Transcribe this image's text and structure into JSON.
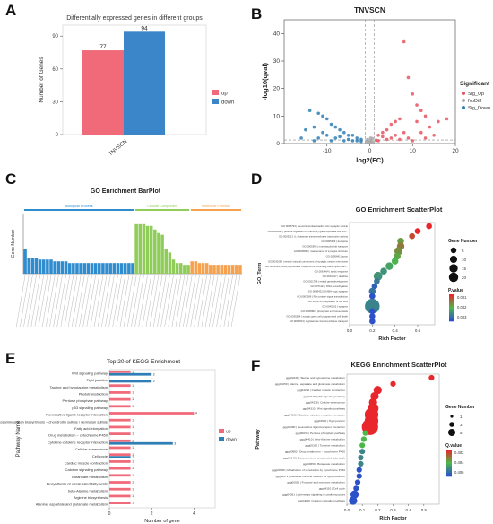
{
  "panel_letters": [
    "A",
    "B",
    "C",
    "D",
    "E",
    "F"
  ],
  "chart_data": [
    {
      "type": "bar",
      "panel": "A",
      "title": "Differentially expressed genes in different groups",
      "ylabel": "Number of Genes",
      "xlabel": "",
      "categories": [
        "TNVSCN"
      ],
      "series": [
        {
          "name": "up",
          "values": [
            77
          ],
          "color": "#f06a7a"
        },
        {
          "name": "down",
          "values": [
            94
          ],
          "color": "#3a86c8"
        }
      ],
      "ylim": [
        0,
        100
      ],
      "yticks": [
        0,
        30,
        60,
        90
      ],
      "legend": [
        "up",
        "down"
      ],
      "legend_position": "right"
    },
    {
      "type": "scatter",
      "panel": "B",
      "title": "TNVSCN",
      "xlabel": "log2(FC)",
      "ylabel": "-log10(qval)",
      "xlim": [
        -20,
        20
      ],
      "ylim": [
        0,
        45
      ],
      "xticks": [
        -10,
        0,
        10,
        20
      ],
      "yticks": [
        0,
        10,
        20,
        30,
        40
      ],
      "legend_title": "Significant",
      "legend": [
        {
          "name": "Sig_Up",
          "color": "#e8535f"
        },
        {
          "name": "NoDiff",
          "color": "#aaaaaa"
        },
        {
          "name": "Sig_Down",
          "color": "#2f7fb6"
        }
      ],
      "threshold_x": [
        -1,
        1
      ],
      "series": [
        {
          "name": "Sig_Up",
          "points": [
            [
              8,
              37
            ],
            [
              9,
              24
            ],
            [
              10,
              18
            ],
            [
              11,
              14
            ],
            [
              12,
              12
            ],
            [
              13,
              10
            ],
            [
              7,
              9
            ],
            [
              6,
              8
            ],
            [
              5,
              7
            ],
            [
              11,
              8
            ],
            [
              14,
              6
            ],
            [
              16,
              8
            ],
            [
              18,
              9
            ],
            [
              4,
              5
            ],
            [
              3,
              4
            ],
            [
              2,
              3
            ],
            [
              6,
              3
            ],
            [
              8,
              4
            ],
            [
              12,
              4
            ],
            [
              15,
              3
            ],
            [
              9,
              2
            ],
            [
              4,
              1.5
            ],
            [
              2,
              1
            ],
            [
              3,
              2.5
            ],
            [
              5,
              2
            ],
            [
              7,
              1.5
            ],
            [
              10,
              1
            ],
            [
              13,
              2
            ],
            [
              1.5,
              1.2
            ]
          ]
        },
        {
          "name": "NoDiff",
          "points": [
            [
              0,
              0.5
            ],
            [
              0.5,
              1
            ],
            [
              -0.5,
              1.5
            ],
            [
              0.2,
              2
            ],
            [
              -0.2,
              0.8
            ],
            [
              0.8,
              0.3
            ],
            [
              -0.8,
              0.6
            ],
            [
              0.3,
              1.2
            ],
            [
              -0.3,
              0.2
            ],
            [
              0.6,
              1.8
            ],
            [
              -0.6,
              1.1
            ],
            [
              0.1,
              0.4
            ]
          ]
        },
        {
          "name": "Sig_Down",
          "points": [
            [
              -14,
              12
            ],
            [
              -12,
              11
            ],
            [
              -11,
              10
            ],
            [
              -10,
              9
            ],
            [
              -9,
              7
            ],
            [
              -8,
              6
            ],
            [
              -7,
              5
            ],
            [
              -13,
              6
            ],
            [
              -15,
              5
            ],
            [
              -6,
              4
            ],
            [
              -5,
              3
            ],
            [
              -4,
              3
            ],
            [
              -3,
              2
            ],
            [
              -2,
              1.5
            ],
            [
              -8,
              2
            ],
            [
              -10,
              3
            ],
            [
              -12,
              2
            ],
            [
              -6,
              1
            ],
            [
              -9,
              1
            ],
            [
              -11,
              4
            ],
            [
              -4,
              1
            ],
            [
              -7,
              2.5
            ],
            [
              -3,
              1
            ],
            [
              -5,
              1.5
            ],
            [
              -13,
              1
            ],
            [
              -2,
              0.8
            ],
            [
              -16,
              2
            ]
          ]
        }
      ]
    },
    {
      "type": "bar",
      "panel": "C",
      "title": "GO Enrichment BarPlot",
      "ylabel": "Gene Number",
      "groups": [
        {
          "name": "Biological Process",
          "color": "#2f8ccf",
          "values": [
            14,
            9,
            9,
            9,
            8,
            8,
            8,
            8,
            7,
            7,
            7,
            7,
            6,
            6,
            6,
            6,
            6,
            6,
            6,
            6,
            6,
            6,
            6,
            6,
            6,
            6,
            6,
            6,
            6,
            6
          ]
        },
        {
          "name": "Cellular Component",
          "color": "#8fcc5a",
          "values": [
            28,
            28,
            28,
            27,
            27,
            25,
            23,
            22,
            14,
            12,
            8,
            6,
            6,
            5,
            5
          ]
        },
        {
          "name": "Molecular Function",
          "color": "#f5a14d",
          "values": [
            7,
            7,
            6,
            6,
            6,
            5,
            5,
            5,
            5,
            5,
            5,
            5,
            5,
            5
          ]
        }
      ],
      "ylim": [
        0,
        34
      ]
    },
    {
      "type": "scatter",
      "panel": "D",
      "title": "GO Enrichment ScatterPlot",
      "xlabel": "Rich Factor",
      "ylabel": "GO_Term",
      "xlim": [
        0,
        0.75
      ],
      "xticks": [
        0.0,
        0.2,
        0.4,
        0.6
      ],
      "categories": [
        "GO:0098793 | neurotransmitter-loading into synaptic vesicle",
        "GO:0032891 | positive regulation of mammary gland epithelial cell prol...",
        "GO:0005313 | L-glutamate transmembrane transporter activity",
        "GO:0005423 | decapine",
        "GO:0005996 | monosaccharide transport",
        "GO:0005828 | maintenance of synapse structure",
        "GO:0005641 | axon",
        "GO:0030285 | vesicle integral component of synaptic vesicle membrane",
        "GO:0061629 | RNA polymerase II-specific DNA-binding transcription fact...",
        "GO:0061464 | aortic response",
        "GO:0010617 | dendrite",
        "GO:0021766 | retinal gene development",
        "GO:0071111 | DNA demethylation",
        "GO:0008422 | GABA-ergic synapse",
        "GO:0007286 | Ras protein signal transduction",
        "GO:0051728 | regulation of cell size",
        "GO:0045202 | synapse",
        "GO:0005982 | phosphate ion homeostasis",
        "GO:0035234 | ectopic germ cell programmed cell death",
        "GO:0015813 | L-glutamate transmembrane transport"
      ],
      "rich_factor": [
        0.7,
        0.6,
        0.55,
        0.45,
        0.45,
        0.43,
        0.42,
        0.4,
        0.35,
        0.3,
        0.25,
        0.24,
        0.22,
        0.2,
        0.2,
        0.2,
        0.2,
        0.2,
        0.2,
        0.2
      ],
      "gene_number": [
        2,
        2,
        2,
        3,
        4,
        5,
        3,
        3,
        4,
        3,
        6,
        2,
        2,
        3,
        2,
        2,
        22,
        2,
        2,
        2
      ],
      "p_values": [
        0.0005,
        0.0005,
        0.0008,
        0.0015,
        0.0012,
        0.0014,
        0.0016,
        0.0018,
        0.002,
        0.0022,
        0.0022,
        0.0025,
        0.0028,
        0.0026,
        0.003,
        0.003,
        0.0024,
        0.003,
        0.003,
        0.003
      ],
      "size_legend_title": "Gene Number",
      "size_legend": [
        5,
        10,
        15,
        20
      ],
      "color_legend_title": "P.value",
      "color_legend_ticks": [
        0.001,
        0.002,
        0.003
      ]
    },
    {
      "type": "bar",
      "panel": "E",
      "title": "Top 20 of KEGG Enrichment",
      "xlabel": "Number of gene",
      "ylabel": "Pathway Name",
      "orientation": "horizontal",
      "categories": [
        "Wnt signaling pathway",
        "Tight junction",
        "Taurine and hypotaurine metabolism",
        "Phototransduction",
        "Pentose phosphate pathway",
        "p53 signaling pathway",
        "Neuroactive ligand-receptor interaction",
        "Glycosaminoglycan biosynthesis – chondroitin sulfate / dermatan sulfate",
        "Fatty acid elongation",
        "Drug metabolism – cytochrome P450",
        "Cytokine-cytokine receptor interaction",
        "Cellular senescence",
        "Cell cycle",
        "Cardiac muscle contraction",
        "Calcium signaling pathway",
        "Butanoate metabolism",
        "Biosynthesis of unsaturated fatty acids",
        "beta-Alanine metabolism",
        "Arginine biosynthesis",
        "Alanine, aspartate and glutamate metabolism"
      ],
      "series": [
        {
          "name": "up",
          "color": "#f06a7a",
          "values": [
            1,
            0,
            1,
            1,
            1,
            1,
            4,
            1,
            1,
            1,
            1,
            1,
            1,
            1,
            1,
            1,
            1,
            1,
            1,
            1
          ]
        },
        {
          "name": "down",
          "color": "#2f7fb6",
          "values": [
            2,
            2,
            0,
            0,
            0,
            0,
            0,
            0,
            0,
            0,
            3,
            0,
            1,
            0,
            0,
            0,
            0,
            0,
            0,
            0
          ]
        }
      ],
      "value_labels": {
        "up": [
          "1",
          "",
          "1",
          "1",
          "1",
          "1",
          "4",
          "1",
          "1",
          "1",
          "1",
          "1",
          "1",
          "1",
          "1",
          "1",
          "1",
          "1",
          "1",
          "1"
        ],
        "down": [
          "2",
          "2",
          "",
          "",
          "",
          "",
          "",
          "",
          "",
          "",
          "3",
          "",
          "1",
          "",
          "",
          "",
          "",
          "",
          "",
          ""
        ]
      },
      "xlim": [
        0,
        5
      ],
      "xticks": [
        0,
        2,
        4
      ],
      "legend": [
        "up",
        "down"
      ]
    },
    {
      "type": "scatter",
      "panel": "F",
      "title": "KEGG Enrichment ScatterPlot",
      "xlabel": "Rich Factor",
      "ylabel": "Pathway",
      "xlim": [
        0,
        0.6
      ],
      "xticks": [
        0.0,
        0.1,
        0.2,
        0.3,
        0.4,
        0.5
      ],
      "categories": [
        "ggg00430 | Taurine and hypotaurine metabolism",
        "ggg00250 | Alanine, aspartate and glutamate metabolism",
        "ggg04260 | Cardiac muscle contraction",
        "ggg04115 | p53 signaling pathway",
        "ggg04218 | Cellular senescence",
        "ggg04310 | Wnt signaling pathway",
        "ggg04060 | Cytokine-cytokine receptor interaction",
        "ggg04530 | Tight junction",
        "ggg04080 | Neuroactive ligand-receptor interaction",
        "ggg00030 | Pentose phosphate pathway",
        "ggg00410 | beta-Alanine metabolism",
        "ggg00350 | Tyrosine metabolism",
        "ggg00982 | Drug metabolism – cytochrome P450",
        "ggg01040 | Biosynthesis of unsaturated fatty acids",
        "ggg00650 | Butanoate metabolism",
        "ggg00980 | Metabolism of xenobiotics by cytochrome P450",
        "ggg04672 | Intestinal immune network for IgA production",
        "ggg00051 | Fructose and mannose metabolism",
        "ggg04110 | Cell cycle",
        "ggg04261 | Adrenergic signaling in cardiomyocytes",
        "ggg04020 | Calcium signaling pathway"
      ],
      "rich_factor": [
        0.55,
        0.3,
        0.2,
        0.18,
        0.17,
        0.17,
        0.16,
        0.16,
        0.15,
        0.12,
        0.11,
        0.1,
        0.1,
        0.09,
        0.09,
        0.08,
        0.08,
        0.07,
        0.06,
        0.05,
        0.04
      ],
      "gene_number": [
        1,
        1,
        2,
        2,
        2,
        3,
        4,
        4,
        5,
        1,
        1,
        1,
        1,
        1,
        1,
        1,
        1,
        1,
        1,
        2,
        2
      ],
      "q_values": [
        0.402,
        0.402,
        0.402,
        0.402,
        0.402,
        0.402,
        0.402,
        0.402,
        0.402,
        0.404,
        0.404,
        0.404,
        0.405,
        0.405,
        0.405,
        0.406,
        0.406,
        0.406,
        0.406,
        0.406,
        0.406
      ],
      "size_legend_title": "Gene Number",
      "size_legend": [
        1,
        3,
        5
      ],
      "color_legend_title": "Q.value",
      "color_legend_ticks": [
        0.402,
        0.404,
        0.406
      ]
    }
  ]
}
